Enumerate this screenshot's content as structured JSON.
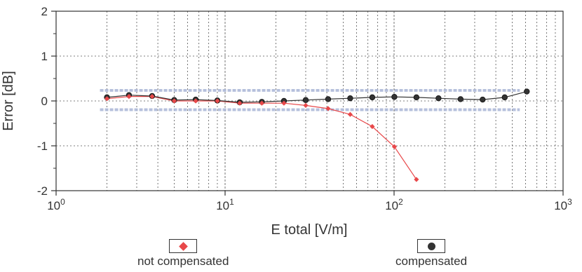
{
  "chart_data": {
    "type": "line",
    "title": "",
    "xlabel": "E total [V/m]",
    "ylabel": "Error [dB]",
    "x_scale": "log",
    "xlim": [
      1,
      1000
    ],
    "ylim": [
      -2,
      2
    ],
    "grid": true,
    "x_ticks": [
      {
        "base": "10",
        "exp": "0"
      },
      {
        "base": "10",
        "exp": "1"
      },
      {
        "base": "10",
        "exp": "2"
      },
      {
        "base": "10",
        "exp": "3"
      }
    ],
    "y_ticks": [
      "2",
      "1",
      "0",
      "-1",
      "-2"
    ],
    "y_tick_values": [
      2,
      1,
      0,
      -1,
      -2
    ],
    "series": [
      {
        "name": "not compensated",
        "color": "#e8484a",
        "marker": "diamond",
        "x": [
          2,
          2.7,
          3.7,
          5,
          6.7,
          9,
          12.2,
          16.5,
          22.3,
          30,
          40.7,
          55,
          74.3,
          100.4,
          135.6
        ],
        "y": [
          0.05,
          0.1,
          0.1,
          0.0,
          0.0,
          0.0,
          -0.05,
          -0.05,
          -0.05,
          -0.1,
          -0.17,
          -0.3,
          -0.57,
          -1.02,
          -1.75
        ]
      },
      {
        "name": "compensated",
        "color": "#333333",
        "marker": "circle",
        "x": [
          2,
          2.7,
          3.7,
          5,
          6.7,
          9,
          12.2,
          16.5,
          22.3,
          30,
          40.7,
          55,
          74.3,
          100.4,
          135.6,
          183.2,
          247.4,
          334.2,
          451.5,
          610
        ],
        "y": [
          0.08,
          0.13,
          0.11,
          0.02,
          0.03,
          0.01,
          -0.03,
          -0.02,
          0.0,
          0.02,
          0.04,
          0.06,
          0.08,
          0.09,
          0.08,
          0.06,
          0.04,
          0.03,
          0.08,
          0.21
        ]
      }
    ],
    "uncertainty_band": [
      {
        "y": 0.25,
        "color": "#aab6d6"
      },
      {
        "y": 0.22,
        "color": "#aab6d6"
      },
      {
        "y": -0.18,
        "color": "#aab6d6"
      },
      {
        "y": -0.21,
        "color": "#aab6d6"
      }
    ],
    "legend": [
      {
        "label": "not compensated",
        "marker": "diamond",
        "color": "#e8484a"
      },
      {
        "label": "compensated",
        "marker": "circle",
        "color": "#333333"
      }
    ]
  }
}
